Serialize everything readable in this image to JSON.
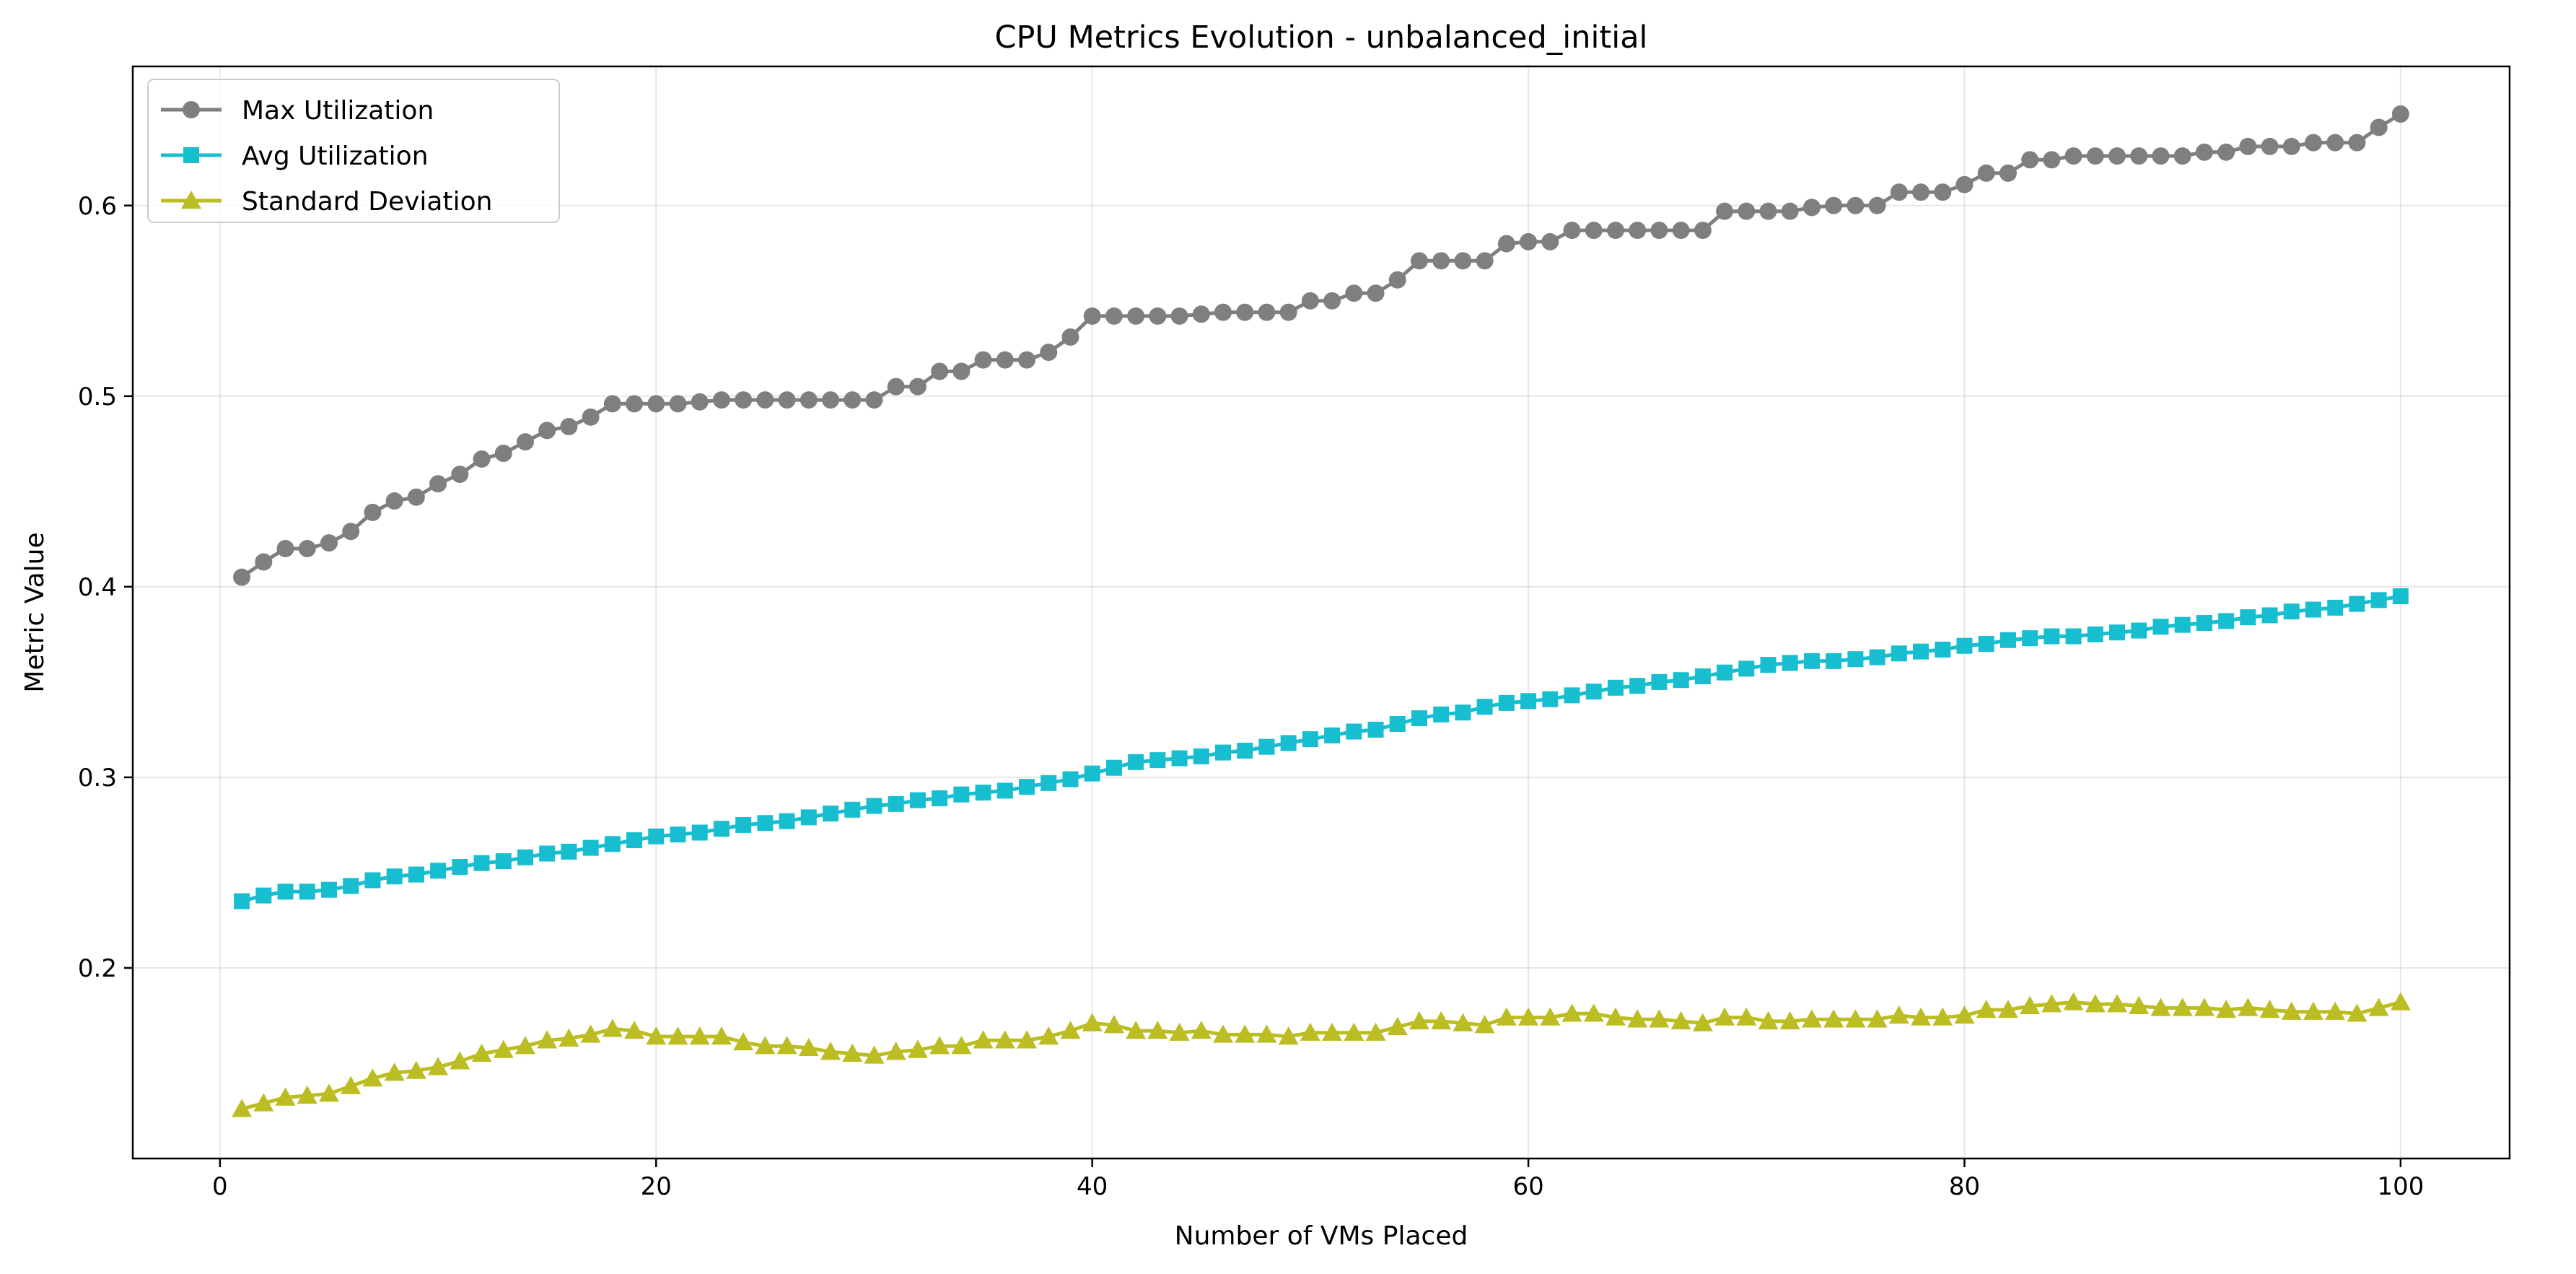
{
  "chart_data": {
    "type": "line",
    "title": "CPU Metrics Evolution - unbalanced_initial",
    "xlabel": "Number of VMs Placed",
    "ylabel": "Metric Value",
    "xlim": [
      -4,
      105
    ],
    "ylim": [
      0.1,
      0.673
    ],
    "xticks": [
      0,
      20,
      40,
      60,
      80,
      100
    ],
    "yticks": [
      0.2,
      0.3,
      0.4,
      0.5,
      0.6
    ],
    "grid": true,
    "legend_position": "upper-left",
    "x": [
      1,
      2,
      3,
      4,
      5,
      6,
      7,
      8,
      9,
      10,
      11,
      12,
      13,
      14,
      15,
      16,
      17,
      18,
      19,
      20,
      21,
      22,
      23,
      24,
      25,
      26,
      27,
      28,
      29,
      30,
      31,
      32,
      33,
      34,
      35,
      36,
      37,
      38,
      39,
      40,
      41,
      42,
      43,
      44,
      45,
      46,
      47,
      48,
      49,
      50,
      51,
      52,
      53,
      54,
      55,
      56,
      57,
      58,
      59,
      60,
      61,
      62,
      63,
      64,
      65,
      66,
      67,
      68,
      69,
      70,
      71,
      72,
      73,
      74,
      75,
      76,
      77,
      78,
      79,
      80,
      81,
      82,
      83,
      84,
      85,
      86,
      87,
      88,
      89,
      90,
      91,
      92,
      93,
      94,
      95,
      96,
      97,
      98,
      99,
      100
    ],
    "series": [
      {
        "name": "Max Utilization",
        "color": "#7f7f7f",
        "marker": "circle",
        "values": [
          0.405,
          0.413,
          0.42,
          0.42,
          0.423,
          0.429,
          0.439,
          0.445,
          0.447,
          0.454,
          0.459,
          0.467,
          0.47,
          0.476,
          0.482,
          0.484,
          0.489,
          0.496,
          0.496,
          0.496,
          0.496,
          0.497,
          0.498,
          0.498,
          0.498,
          0.498,
          0.498,
          0.498,
          0.498,
          0.498,
          0.505,
          0.505,
          0.513,
          0.513,
          0.519,
          0.519,
          0.519,
          0.523,
          0.531,
          0.542,
          0.542,
          0.542,
          0.542,
          0.542,
          0.543,
          0.544,
          0.544,
          0.544,
          0.544,
          0.55,
          0.55,
          0.554,
          0.554,
          0.561,
          0.571,
          0.571,
          0.571,
          0.571,
          0.58,
          0.581,
          0.581,
          0.587,
          0.587,
          0.587,
          0.587,
          0.587,
          0.587,
          0.587,
          0.597,
          0.597,
          0.597,
          0.597,
          0.599,
          0.6,
          0.6,
          0.6,
          0.607,
          0.607,
          0.607,
          0.611,
          0.617,
          0.617,
          0.624,
          0.624,
          0.626,
          0.626,
          0.626,
          0.626,
          0.626,
          0.626,
          0.628,
          0.628,
          0.631,
          0.631,
          0.631,
          0.633,
          0.633,
          0.633,
          0.641,
          0.648
        ]
      },
      {
        "name": "Avg Utilization",
        "color": "#17becf",
        "marker": "square",
        "values": [
          0.235,
          0.238,
          0.24,
          0.24,
          0.241,
          0.243,
          0.246,
          0.248,
          0.249,
          0.251,
          0.253,
          0.255,
          0.256,
          0.258,
          0.26,
          0.261,
          0.263,
          0.265,
          0.267,
          0.269,
          0.27,
          0.271,
          0.273,
          0.275,
          0.276,
          0.277,
          0.279,
          0.281,
          0.283,
          0.285,
          0.286,
          0.288,
          0.289,
          0.291,
          0.292,
          0.293,
          0.295,
          0.297,
          0.299,
          0.302,
          0.305,
          0.308,
          0.309,
          0.31,
          0.311,
          0.313,
          0.314,
          0.316,
          0.318,
          0.32,
          0.322,
          0.324,
          0.325,
          0.328,
          0.331,
          0.333,
          0.334,
          0.337,
          0.339,
          0.34,
          0.341,
          0.343,
          0.345,
          0.347,
          0.348,
          0.35,
          0.351,
          0.353,
          0.355,
          0.357,
          0.359,
          0.36,
          0.361,
          0.361,
          0.362,
          0.363,
          0.365,
          0.366,
          0.367,
          0.369,
          0.37,
          0.372,
          0.373,
          0.374,
          0.374,
          0.375,
          0.376,
          0.377,
          0.379,
          0.38,
          0.381,
          0.382,
          0.384,
          0.385,
          0.387,
          0.388,
          0.389,
          0.391,
          0.393,
          0.395
        ]
      },
      {
        "name": "Standard Deviation",
        "color": "#bcbd22",
        "marker": "triangle",
        "values": [
          0.126,
          0.129,
          0.132,
          0.133,
          0.134,
          0.138,
          0.142,
          0.145,
          0.146,
          0.148,
          0.151,
          0.155,
          0.157,
          0.159,
          0.162,
          0.163,
          0.165,
          0.168,
          0.167,
          0.164,
          0.164,
          0.164,
          0.164,
          0.161,
          0.159,
          0.159,
          0.158,
          0.156,
          0.155,
          0.154,
          0.156,
          0.157,
          0.159,
          0.159,
          0.162,
          0.162,
          0.162,
          0.164,
          0.167,
          0.171,
          0.17,
          0.167,
          0.167,
          0.166,
          0.167,
          0.165,
          0.165,
          0.165,
          0.164,
          0.166,
          0.166,
          0.166,
          0.166,
          0.169,
          0.172,
          0.172,
          0.171,
          0.17,
          0.174,
          0.174,
          0.174,
          0.176,
          0.176,
          0.174,
          0.173,
          0.173,
          0.172,
          0.171,
          0.174,
          0.174,
          0.172,
          0.172,
          0.173,
          0.173,
          0.173,
          0.173,
          0.175,
          0.174,
          0.174,
          0.175,
          0.178,
          0.178,
          0.18,
          0.181,
          0.182,
          0.181,
          0.181,
          0.18,
          0.179,
          0.179,
          0.179,
          0.178,
          0.179,
          0.178,
          0.177,
          0.177,
          0.177,
          0.176,
          0.179,
          0.182
        ]
      }
    ]
  }
}
